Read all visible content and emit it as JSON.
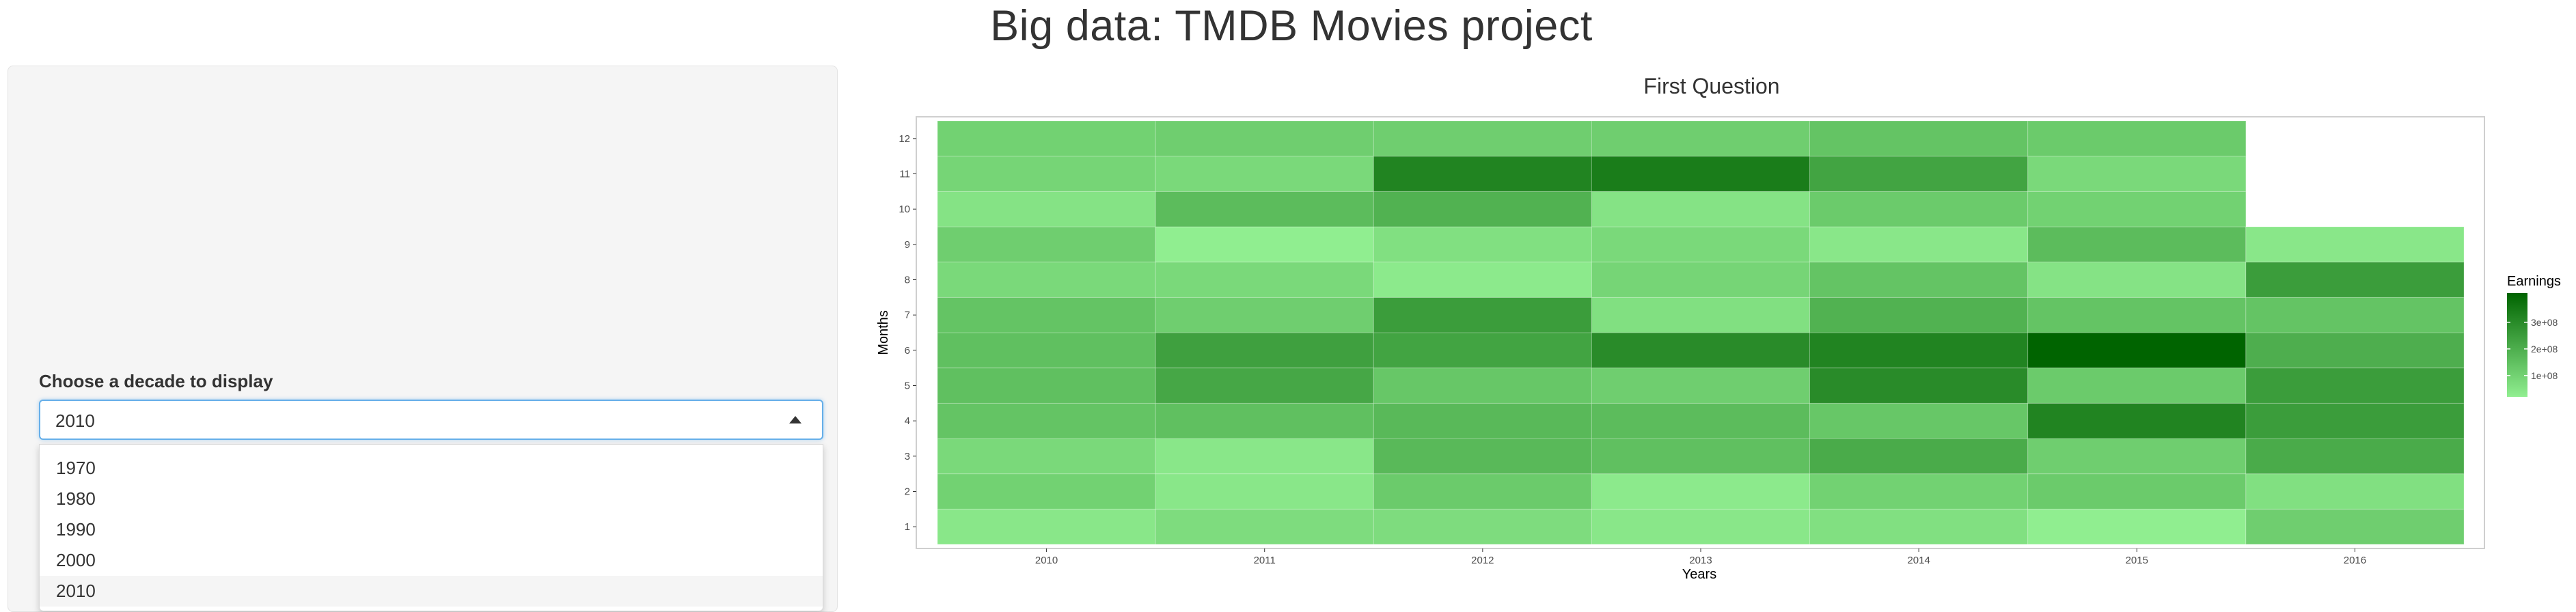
{
  "page": {
    "title": "Big data: TMDB Movies project"
  },
  "sidebar": {
    "select_label": "Choose a decade to display",
    "selected_value": "2010",
    "options": [
      "1970",
      "1980",
      "1990",
      "2000",
      "2010"
    ]
  },
  "main": {
    "chart_title": "First Question"
  },
  "colors": {
    "low": "#90EE90",
    "high": "#006400",
    "focus_border": "#66afe9"
  },
  "chart_data": {
    "type": "heatmap",
    "title": "First Question",
    "xlabel": "Years",
    "ylabel": "Months",
    "x_categories": [
      "2010",
      "2011",
      "2012",
      "2013",
      "2014",
      "2015",
      "2016"
    ],
    "y_categories": [
      "1",
      "2",
      "3",
      "4",
      "5",
      "6",
      "7",
      "8",
      "9",
      "10",
      "11",
      "12"
    ],
    "legend": {
      "title": "Earnings",
      "ticks": [
        "1e+08",
        "2e+08",
        "3e+08"
      ],
      "tick_values": [
        100000000,
        200000000,
        300000000
      ],
      "position": "right"
    },
    "value_range": [
      20000000,
      410000000
    ],
    "values": [
      [
        40000000,
        100000000,
        80000000,
        140000000,
        150000000,
        150000000,
        140000000,
        80000000,
        110000000,
        50000000,
        90000000,
        100000000
      ],
      [
        70000000,
        40000000,
        40000000,
        150000000,
        220000000,
        240000000,
        110000000,
        80000000,
        20000000,
        160000000,
        80000000,
        110000000
      ],
      [
        70000000,
        120000000,
        170000000,
        170000000,
        130000000,
        230000000,
        250000000,
        30000000,
        60000000,
        190000000,
        320000000,
        110000000
      ],
      [
        40000000,
        30000000,
        150000000,
        160000000,
        110000000,
        300000000,
        60000000,
        90000000,
        80000000,
        50000000,
        340000000,
        110000000
      ],
      [
        60000000,
        100000000,
        210000000,
        130000000,
        300000000,
        320000000,
        190000000,
        140000000,
        40000000,
        120000000,
        230000000,
        140000000
      ],
      [
        20000000,
        120000000,
        110000000,
        320000000,
        120000000,
        410000000,
        140000000,
        50000000,
        160000000,
        100000000,
        80000000,
        120000000
      ],
      [
        110000000,
        60000000,
        210000000,
        250000000,
        250000000,
        200000000,
        140000000,
        250000000,
        40000000,
        null,
        null,
        null
      ]
    ]
  }
}
